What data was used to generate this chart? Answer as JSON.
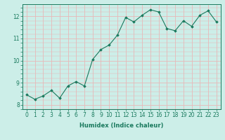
{
  "x": [
    0,
    1,
    2,
    3,
    4,
    5,
    6,
    7,
    8,
    9,
    10,
    11,
    12,
    13,
    14,
    15,
    16,
    17,
    18,
    19,
    20,
    21,
    22,
    23
  ],
  "y": [
    8.45,
    8.25,
    8.4,
    8.65,
    8.3,
    8.85,
    9.05,
    8.85,
    10.05,
    10.5,
    10.7,
    11.15,
    11.95,
    11.75,
    12.05,
    12.3,
    12.2,
    11.45,
    11.35,
    11.8,
    11.55,
    12.05,
    12.25,
    11.75
  ],
  "line_color": "#1a7a5e",
  "marker": "D",
  "markersize": 1.8,
  "linewidth": 0.8,
  "background_color": "#cceee8",
  "grid_color": "#e8b8b8",
  "xlabel": "Humidex (Indice chaleur)",
  "xlabel_fontsize": 6,
  "tick_fontsize": 5.5,
  "xlim": [
    -0.5,
    23.5
  ],
  "ylim": [
    7.8,
    12.55
  ],
  "yticks": [
    8,
    9,
    10,
    11,
    12
  ],
  "xticks": [
    0,
    1,
    2,
    3,
    4,
    5,
    6,
    7,
    8,
    9,
    10,
    11,
    12,
    13,
    14,
    15,
    16,
    17,
    18,
    19,
    20,
    21,
    22,
    23
  ]
}
